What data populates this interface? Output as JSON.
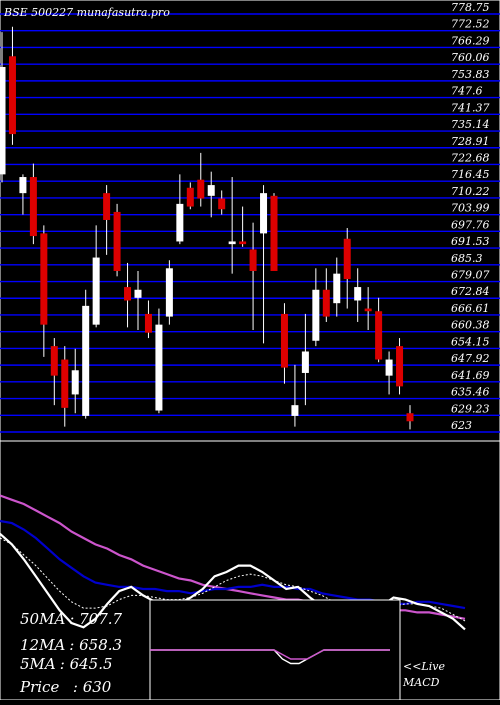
{
  "header": {
    "symbol": "BSE 500227",
    "site": "munafasutra.pro"
  },
  "colors": {
    "background": "#000000",
    "price_grid": "#0000ff",
    "up_candle": "#ffffff",
    "down_candle": "#dd0000",
    "text": "#ffffff",
    "ma_magenta": "#cc55cc",
    "ma_blue": "#0000cc",
    "ma_white": "#ffffff"
  },
  "chart_data": [
    {
      "type": "candlestick",
      "title": "BSE 500227 munafasutra.pro",
      "y_ticks": [
        "778.75",
        "772.52",
        "766.29",
        "760.06",
        "753.83",
        "747.6",
        "741.37",
        "735.14",
        "728.91",
        "722.68",
        "716.45",
        "710.22",
        "703.99",
        "697.76",
        "691.53",
        "685.3",
        "679.07",
        "672.84",
        "666.61",
        "660.38",
        "654.15",
        "647.92",
        "641.69",
        "635.46",
        "629.23",
        "623"
      ],
      "ylim": [
        623,
        778.75
      ],
      "grid": true,
      "candles": [
        {
          "open": 719,
          "high": 772,
          "low": 716,
          "close": 759
        },
        {
          "open": 763,
          "high": 774,
          "low": 730,
          "close": 734
        },
        {
          "open": 712,
          "high": 719,
          "low": 704,
          "close": 718
        },
        {
          "open": 718,
          "high": 723,
          "low": 693,
          "close": 696
        },
        {
          "open": 697,
          "high": 700,
          "low": 651,
          "close": 663
        },
        {
          "open": 655,
          "high": 658,
          "low": 633,
          "close": 644
        },
        {
          "open": 650,
          "high": 655,
          "low": 625,
          "close": 632
        },
        {
          "open": 637,
          "high": 654,
          "low": 630,
          "close": 646
        },
        {
          "open": 629,
          "high": 676,
          "low": 628,
          "close": 670
        },
        {
          "open": 663,
          "high": 700,
          "low": 662,
          "close": 688
        },
        {
          "open": 712,
          "high": 715,
          "low": 689,
          "close": 702
        },
        {
          "open": 705,
          "high": 708,
          "low": 681,
          "close": 683
        },
        {
          "open": 677,
          "high": 686,
          "low": 662,
          "close": 672
        },
        {
          "open": 673,
          "high": 683,
          "low": 661,
          "close": 676
        },
        {
          "open": 667,
          "high": 672,
          "low": 658,
          "close": 660
        },
        {
          "open": 631,
          "high": 669,
          "low": 630,
          "close": 663
        },
        {
          "open": 666,
          "high": 687,
          "low": 663,
          "close": 684
        },
        {
          "open": 694,
          "high": 719,
          "low": 693,
          "close": 708
        },
        {
          "open": 714,
          "high": 716,
          "low": 706,
          "close": 707
        },
        {
          "open": 717,
          "high": 727,
          "low": 707,
          "close": 710
        },
        {
          "open": 711,
          "high": 720,
          "low": 703,
          "close": 715
        },
        {
          "open": 710,
          "high": 713,
          "low": 704,
          "close": 706
        },
        {
          "open": 693,
          "high": 718,
          "low": 682,
          "close": 694
        },
        {
          "open": 694,
          "high": 707,
          "low": 692,
          "close": 693
        },
        {
          "open": 691,
          "high": 701,
          "low": 661,
          "close": 683
        },
        {
          "open": 697,
          "high": 715,
          "low": 656,
          "close": 712
        },
        {
          "open": 711,
          "high": 712,
          "low": 684,
          "close": 683
        },
        {
          "open": 667,
          "high": 671,
          "low": 641,
          "close": 647
        },
        {
          "open": 629,
          "high": 648,
          "low": 625,
          "close": 633
        },
        {
          "open": 645,
          "high": 667,
          "low": 633,
          "close": 653
        },
        {
          "open": 657,
          "high": 684,
          "low": 655,
          "close": 676
        },
        {
          "open": 676,
          "high": 684,
          "low": 664,
          "close": 666
        },
        {
          "open": 671,
          "high": 688,
          "low": 666,
          "close": 682
        },
        {
          "open": 695,
          "high": 699,
          "low": 669,
          "close": 680
        },
        {
          "open": 672,
          "high": 684,
          "low": 664,
          "close": 677
        },
        {
          "open": 669,
          "high": 677,
          "low": 661,
          "close": 668
        },
        {
          "open": 668,
          "high": 673,
          "low": 649,
          "close": 650
        },
        {
          "open": 644,
          "high": 653,
          "low": 637,
          "close": 650
        },
        {
          "open": 655,
          "high": 658,
          "low": 637,
          "close": 640
        },
        {
          "open": 630,
          "high": 633,
          "low": 624,
          "close": 627
        }
      ]
    },
    {
      "type": "line",
      "panel": "moving_averages",
      "series": [
        {
          "color": "#cc55cc",
          "values": [
            688,
            686,
            684,
            681,
            678,
            675,
            671,
            668,
            665,
            663,
            660,
            658,
            655,
            653,
            651,
            649,
            648,
            646,
            645,
            644,
            643,
            642,
            641,
            640,
            639,
            639,
            638,
            637,
            636,
            636,
            635,
            635,
            634,
            634,
            634,
            633,
            633,
            632,
            631,
            630
          ]
        },
        {
          "color": "#0000cc",
          "values": [
            676,
            675,
            672,
            668,
            663,
            658,
            654,
            650,
            647,
            646,
            645,
            645,
            644,
            644,
            643,
            643,
            642,
            643,
            644,
            644,
            645,
            645,
            646,
            645,
            645,
            644,
            644,
            642,
            641,
            640,
            639,
            639,
            638,
            637,
            637,
            638,
            638,
            637,
            636,
            635
          ]
        },
        {
          "color": "#ffffff",
          "values": [
            670,
            665,
            658,
            650,
            642,
            634,
            628,
            626,
            630,
            637,
            643,
            645,
            641,
            638,
            636,
            637,
            640,
            644,
            650,
            652,
            655,
            655,
            652,
            648,
            644,
            645,
            640,
            636,
            633,
            634,
            631,
            634,
            636,
            640,
            639,
            637,
            636,
            633,
            630,
            625
          ]
        },
        {
          "color": "#ffffff",
          "dashed": true,
          "values": [
            668,
            665,
            660,
            655,
            649,
            643,
            638,
            635,
            635,
            636,
            639,
            641,
            641,
            640,
            639,
            639,
            640,
            642,
            645,
            648,
            650,
            651,
            650,
            648,
            646,
            645,
            643,
            641,
            638,
            636,
            634,
            634,
            635,
            636,
            637,
            637,
            636,
            635,
            632,
            629
          ]
        }
      ],
      "ylim": [
        620,
        700
      ]
    },
    {
      "type": "line",
      "panel": "macd",
      "title": "<<Live MACD",
      "series": [
        {
          "color": "#ffffff",
          "values": [
            0,
            0,
            0,
            0,
            0,
            0,
            0,
            0,
            0,
            0,
            0,
            0,
            0,
            0,
            0,
            0,
            -2,
            -3,
            -3,
            -2,
            -1,
            0,
            0,
            0,
            0,
            0,
            0,
            0,
            0,
            0
          ]
        },
        {
          "color": "#cc55cc",
          "values": [
            0,
            0,
            0,
            0,
            0,
            0,
            0,
            0,
            0,
            0,
            0,
            0,
            0,
            0,
            0,
            0,
            -1,
            -2,
            -2,
            -2,
            -1,
            0,
            0,
            0,
            0,
            0,
            0,
            0,
            0,
            0
          ]
        }
      ],
      "ylim": [
        -10,
        10
      ]
    }
  ],
  "stats": [
    {
      "label": "50MA",
      "value": ": 707.7"
    },
    {
      "label": "12MA",
      "value": ": 658.3"
    },
    {
      "label": "5MA",
      "value": ": 645.5"
    },
    {
      "label": "Price",
      "value": "  : 630"
    }
  ],
  "macd_label": [
    "<<Live",
    "MACD"
  ]
}
